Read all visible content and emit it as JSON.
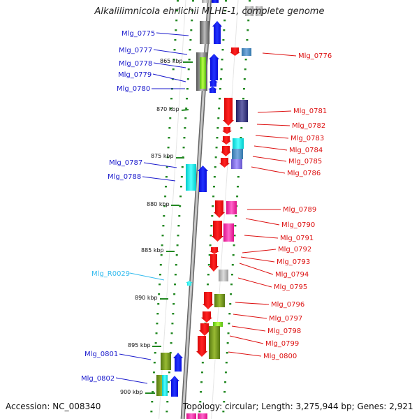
{
  "title": "Alkalilimnicola ehrlichii MLHE-1, complete genome",
  "footer": {
    "accession": "Accession: NC_008340",
    "topology": "Topology: circular; Length: 3,275,944 bp; Genes: 2,921"
  },
  "colors": {
    "minus_label": "#1a1acc",
    "plus_label": "#dd1111",
    "rna_label": "#33bbee",
    "tick": "#228822",
    "backbone": "#999999"
  },
  "kbp_ticks": [
    "865 kbp",
    "870 kbp",
    "875 kbp",
    "880 kbp",
    "885 kbp",
    "890 kbp",
    "895 kbp",
    "900 kbp"
  ],
  "left_labels": [
    {
      "text": "Mlg_0775",
      "kind": "minus"
    },
    {
      "text": "Mlg_0777",
      "kind": "minus"
    },
    {
      "text": "Mlg_0778",
      "kind": "minus"
    },
    {
      "text": "Mlg_0779",
      "kind": "minus"
    },
    {
      "text": "Mlg_0780",
      "kind": "minus"
    },
    {
      "text": "Mlg_0787",
      "kind": "minus"
    },
    {
      "text": "Mlg_0788",
      "kind": "minus"
    },
    {
      "text": "Mlg_R0029",
      "kind": "rna"
    },
    {
      "text": "Mlg_0801",
      "kind": "minus"
    },
    {
      "text": "Mlg_0802",
      "kind": "minus"
    }
  ],
  "right_labels": [
    {
      "text": "Mlg_0776"
    },
    {
      "text": "Mlg_0781"
    },
    {
      "text": "Mlg_0782"
    },
    {
      "text": "Mlg_0783"
    },
    {
      "text": "Mlg_0784"
    },
    {
      "text": "Mlg_0785"
    },
    {
      "text": "Mlg_0786"
    },
    {
      "text": "Mlg_0789"
    },
    {
      "text": "Mlg_0790"
    },
    {
      "text": "Mlg_0791"
    },
    {
      "text": "Mlg_0792"
    },
    {
      "text": "Mlg_0793"
    },
    {
      "text": "Mlg_0794"
    },
    {
      "text": "Mlg_0795"
    },
    {
      "text": "Mlg_0796"
    },
    {
      "text": "Mlg_0797"
    },
    {
      "text": "Mlg_0798"
    },
    {
      "text": "Mlg_0799"
    },
    {
      "text": "Mlg_0800"
    }
  ]
}
